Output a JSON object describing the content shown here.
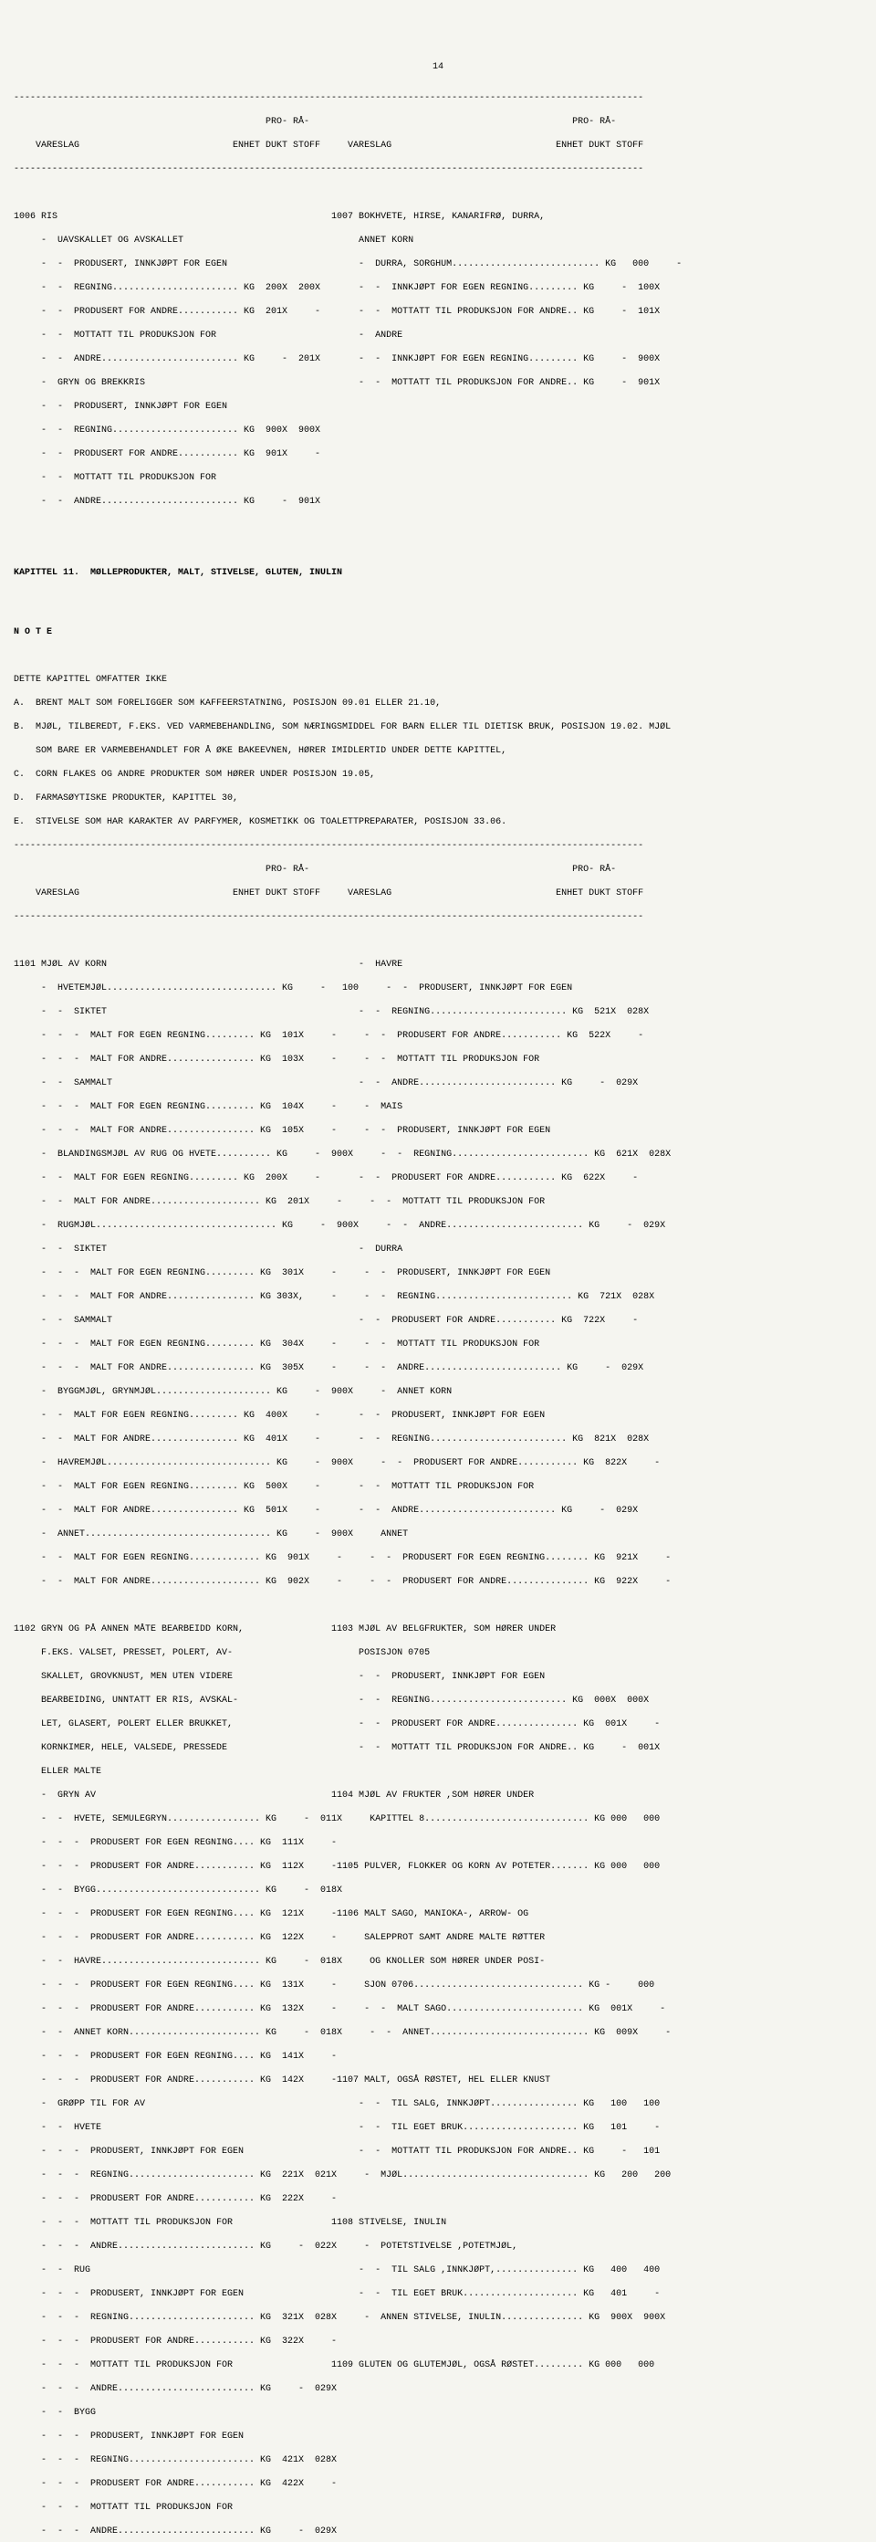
{
  "page_number": "14",
  "header": {
    "col_labels": [
      "VARESLAG",
      "ENHET",
      "PRO-\nDUKT",
      "RÅ-\nSTOFF"
    ]
  },
  "section_1006": {
    "code": "1006",
    "title": "RIS",
    "rows": [
      {
        "i": 1,
        "desc": "UAVSKALLET OG AVSKALLET",
        "e": "",
        "p": "",
        "r": ""
      },
      {
        "i": 2,
        "desc": "PRODUSERT, INNKJØPT FOR EGEN",
        "e": "",
        "p": "",
        "r": ""
      },
      {
        "i": 2,
        "desc": "REGNING.......................",
        "e": "KG",
        "p": "200X",
        "r": "200X"
      },
      {
        "i": 2,
        "desc": "PRODUSERT FOR ANDRE...........",
        "e": "KG",
        "p": "201X",
        "r": "-"
      },
      {
        "i": 2,
        "desc": "MOTTATT TIL PRODUKSJON FOR",
        "e": "",
        "p": "",
        "r": ""
      },
      {
        "i": 2,
        "desc": "ANDRE.........................",
        "e": "KG",
        "p": "-",
        "r": "201X"
      },
      {
        "i": 1,
        "desc": "GRYN OG BREKKRIS",
        "e": "",
        "p": "",
        "r": ""
      },
      {
        "i": 2,
        "desc": "PRODUSERT, INNKJØPT FOR EGEN",
        "e": "",
        "p": "",
        "r": ""
      },
      {
        "i": 2,
        "desc": "REGNING.......................",
        "e": "KG",
        "p": "900X",
        "r": "900X"
      },
      {
        "i": 2,
        "desc": "PRODUSERT FOR ANDRE...........",
        "e": "KG",
        "p": "901X",
        "r": "-"
      },
      {
        "i": 2,
        "desc": "MOTTATT TIL PRODUKSJON FOR",
        "e": "",
        "p": "",
        "r": ""
      },
      {
        "i": 2,
        "desc": "ANDRE.........................",
        "e": "KG",
        "p": "-",
        "r": "901X"
      }
    ]
  },
  "section_1007": {
    "code": "1007",
    "title": "BOKHVETE, HIRSE, KANARIFRØ, DURRA,\nANNET KORN",
    "rows": [
      {
        "i": 1,
        "desc": "DURRA, SORGHUM...........................",
        "e": "KG",
        "p": "000",
        "r": "-"
      },
      {
        "i": 2,
        "desc": "INNKJØPT FOR EGEN REGNING.........",
        "e": "KG",
        "p": "-",
        "r": "100X"
      },
      {
        "i": 2,
        "desc": "MOTTATT TIL PRODUKSJON FOR ANDRE..",
        "e": "KG",
        "p": "-",
        "r": "101X"
      },
      {
        "i": 1,
        "desc": "ANDRE",
        "e": "",
        "p": "",
        "r": ""
      },
      {
        "i": 2,
        "desc": "INNKJØPT FOR EGEN REGNING.........",
        "e": "KG",
        "p": "-",
        "r": "900X"
      },
      {
        "i": 2,
        "desc": "MOTTATT TIL PRODUKSJON FOR ANDRE..",
        "e": "KG",
        "p": "-",
        "r": "901X"
      }
    ]
  },
  "chapter_title": "KAPITTEL 11.  MØLLEPRODUKTER, MALT, STIVELSE, GLUTEN, INULIN",
  "note_title": "N O T E",
  "note_intro": "DETTE KAPITTEL OMFATTER IKKE",
  "notes": [
    "A.  BRENT MALT SOM FORELIGGER SOM KAFFEERSTATNING, POSISJON 09.01 ELLER 21.10,",
    "B.  MJØL, TILBEREDT, F.EKS. VED VARMEBEHANDLING, SOM NÆRINGSMIDDEL FOR BARN ELLER TIL DIETISK BRUK, POSISJON 19.02. MJØL\n    SOM BARE ER VARMEBEHANDLET FOR Å ØKE BAKEEVNEN, HØRER IMIDLERTID UNDER DETTE KAPITTEL,",
    "C.  CORN FLAKES OG ANDRE PRODUKTER SOM HØRER UNDER POSISJON 19.05,",
    "D.  FARMASØYTISKE PRODUKTER, KAPITTEL 30,",
    "E.  STIVELSE SOM HAR KARAKTER AV PARFYMER, KOSMETIKK OG TOALETTPREPARATER, POSISJON 33.06."
  ],
  "section_1101": {
    "code": "1101",
    "title": "MJØL AV KORN",
    "left": [
      {
        "i": 1,
        "desc": "HVETEMJØL...............................",
        "e": "KG",
        "p": "-",
        "r": "100"
      },
      {
        "i": 2,
        "desc": "SIKTET",
        "e": "",
        "p": "",
        "r": ""
      },
      {
        "i": 3,
        "desc": "MALT FOR EGEN REGNING.........",
        "e": "KG",
        "p": "101X",
        "r": "-"
      },
      {
        "i": 3,
        "desc": "MALT FOR ANDRE................",
        "e": "KG",
        "p": "103X",
        "r": "-"
      },
      {
        "i": 2,
        "desc": "SAMMALT",
        "e": "",
        "p": "",
        "r": ""
      },
      {
        "i": 3,
        "desc": "MALT FOR EGEN REGNING.........",
        "e": "KG",
        "p": "104X",
        "r": "-"
      },
      {
        "i": 3,
        "desc": "MALT FOR ANDRE................",
        "e": "KG",
        "p": "105X",
        "r": "-"
      },
      {
        "i": 1,
        "desc": "BLANDINGSMJØL AV RUG OG HVETE..........",
        "e": "KG",
        "p": "-",
        "r": "900X"
      },
      {
        "i": 2,
        "desc": "MALT FOR EGEN REGNING.........",
        "e": "KG",
        "p": "200X",
        "r": "-"
      },
      {
        "i": 2,
        "desc": "MALT FOR ANDRE....................",
        "e": "KG",
        "p": "201X",
        "r": "-"
      },
      {
        "i": 1,
        "desc": "RUGMJØL.................................",
        "e": "KG",
        "p": "-",
        "r": "900X"
      },
      {
        "i": 2,
        "desc": "SIKTET",
        "e": "",
        "p": "",
        "r": ""
      },
      {
        "i": 3,
        "desc": "MALT FOR EGEN REGNING.........",
        "e": "KG",
        "p": "301X",
        "r": "-"
      },
      {
        "i": 3,
        "desc": "MALT FOR ANDRE................",
        "e": "KG",
        "p": "303X,",
        "r": "-"
      },
      {
        "i": 2,
        "desc": "SAMMALT",
        "e": "",
        "p": "",
        "r": ""
      },
      {
        "i": 3,
        "desc": "MALT FOR EGEN REGNING.........",
        "e": "KG",
        "p": "304X",
        "r": "-"
      },
      {
        "i": 3,
        "desc": "MALT FOR ANDRE................",
        "e": "KG",
        "p": "305X",
        "r": "-"
      },
      {
        "i": 1,
        "desc": "BYGGMJØL, GRYNMJØL.....................",
        "e": "KG",
        "p": "-",
        "r": "900X"
      },
      {
        "i": 2,
        "desc": "MALT FOR EGEN REGNING.........",
        "e": "KG",
        "p": "400X",
        "r": "-"
      },
      {
        "i": 2,
        "desc": "MALT FOR ANDRE................",
        "e": "KG",
        "p": "401X",
        "r": "-"
      },
      {
        "i": 1,
        "desc": "HAVREMJØL..............................",
        "e": "KG",
        "p": "-",
        "r": "900X"
      },
      {
        "i": 2,
        "desc": "MALT FOR EGEN REGNING.........",
        "e": "KG",
        "p": "500X",
        "r": "-"
      },
      {
        "i": 2,
        "desc": "MALT FOR ANDRE................",
        "e": "KG",
        "p": "501X",
        "r": "-"
      },
      {
        "i": 1,
        "desc": "ANNET..................................",
        "e": "KG",
        "p": "-",
        "r": "900X"
      },
      {
        "i": 2,
        "desc": "MALT FOR EGEN REGNING.............",
        "e": "KG",
        "p": "901X",
        "r": "-"
      },
      {
        "i": 2,
        "desc": "MALT FOR ANDRE....................",
        "e": "KG",
        "p": "902X",
        "r": "-"
      }
    ],
    "right": [
      {
        "i": 1,
        "desc": "HAVRE",
        "e": "",
        "p": "",
        "r": ""
      },
      {
        "i": 2,
        "desc": "PRODUSERT, INNKJØPT FOR EGEN",
        "e": "",
        "p": "",
        "r": ""
      },
      {
        "i": 2,
        "desc": "REGNING.........................",
        "e": "KG",
        "p": "521X",
        "r": "028X"
      },
      {
        "i": 2,
        "desc": "PRODUSERT FOR ANDRE...........",
        "e": "KG",
        "p": "522X",
        "r": "-"
      },
      {
        "i": 2,
        "desc": "MOTTATT TIL PRODUKSJON FOR",
        "e": "",
        "p": "",
        "r": ""
      },
      {
        "i": 2,
        "desc": "ANDRE.........................",
        "e": "KG",
        "p": "-",
        "r": "029X"
      },
      {
        "i": 1,
        "desc": "MAIS",
        "e": "",
        "p": "",
        "r": ""
      },
      {
        "i": 2,
        "desc": "PRODUSERT, INNKJØPT FOR EGEN",
        "e": "",
        "p": "",
        "r": ""
      },
      {
        "i": 2,
        "desc": "REGNING.........................",
        "e": "KG",
        "p": "621X",
        "r": "028X"
      },
      {
        "i": 2,
        "desc": "PRODUSERT FOR ANDRE...........",
        "e": "KG",
        "p": "622X",
        "r": "-"
      },
      {
        "i": 2,
        "desc": "MOTTATT TIL PRODUKSJON FOR",
        "e": "",
        "p": "",
        "r": ""
      },
      {
        "i": 2,
        "desc": "ANDRE.........................",
        "e": "KG",
        "p": "-",
        "r": "029X"
      },
      {
        "i": 1,
        "desc": "DURRA",
        "e": "",
        "p": "",
        "r": ""
      },
      {
        "i": 2,
        "desc": "PRODUSERT, INNKJØPT FOR EGEN",
        "e": "",
        "p": "",
        "r": ""
      },
      {
        "i": 2,
        "desc": "REGNING.........................",
        "e": "KG",
        "p": "721X",
        "r": "028X"
      },
      {
        "i": 2,
        "desc": "PRODUSERT FOR ANDRE...........",
        "e": "KG",
        "p": "722X",
        "r": "-"
      },
      {
        "i": 2,
        "desc": "MOTTATT TIL PRODUKSJON FOR",
        "e": "",
        "p": "",
        "r": ""
      },
      {
        "i": 2,
        "desc": "ANDRE.........................",
        "e": "KG",
        "p": "-",
        "r": "029X"
      },
      {
        "i": 1,
        "desc": "ANNET KORN",
        "e": "",
        "p": "",
        "r": ""
      },
      {
        "i": 2,
        "desc": "PRODUSERT, INNKJØPT FOR EGEN",
        "e": "",
        "p": "",
        "r": ""
      },
      {
        "i": 2,
        "desc": "REGNING.........................",
        "e": "KG",
        "p": "821X",
        "r": "028X"
      },
      {
        "i": 2,
        "desc": "PRODUSERT FOR ANDRE...........",
        "e": "KG",
        "p": "822X",
        "r": "-"
      },
      {
        "i": 2,
        "desc": "MOTTATT TIL PRODUKSJON FOR",
        "e": "",
        "p": "",
        "r": ""
      },
      {
        "i": 2,
        "desc": "ANDRE.........................",
        "e": "KG",
        "p": "-",
        "r": "029X"
      },
      {
        "i": 0,
        "desc": "ANNET",
        "e": "",
        "p": "",
        "r": ""
      },
      {
        "i": 2,
        "desc": "PRODUSERT FOR EGEN REGNING........",
        "e": "KG",
        "p": "921X",
        "r": "-"
      },
      {
        "i": 2,
        "desc": "PRODUSERT FOR ANDRE...............",
        "e": "KG",
        "p": "922X",
        "r": "-"
      }
    ]
  },
  "section_1102": {
    "code": "1102",
    "title": "GRYN OG PÅ ANNEN MÅTE BEARBEIDD KORN,\nF.EKS. VALSET, PRESSET, POLERT, AV-\nSKALLET, GROVKNUST, MEN UTEN VIDERE\nBEARBEIDING, UNNTATT ER RIS, AVSKAL-\nLET, GLASERT, POLERT ELLER BRUKKET,\nKORNKIMER, HELE, VALSEDE, PRESSEDE\nELLER MALTE",
    "rows": [
      {
        "i": 1,
        "desc": "GRYN AV",
        "e": "",
        "p": "",
        "r": ""
      },
      {
        "i": 2,
        "desc": "HVETE, SEMULEGRYN.................",
        "e": "KG",
        "p": "-",
        "r": "011X"
      },
      {
        "i": 3,
        "desc": "PRODUSERT FOR EGEN REGNING....",
        "e": "KG",
        "p": "111X",
        "r": "-"
      },
      {
        "i": 3,
        "desc": "PRODUSERT FOR ANDRE...........",
        "e": "KG",
        "p": "112X",
        "r": "-"
      },
      {
        "i": 2,
        "desc": "BYGG..............................",
        "e": "KG",
        "p": "-",
        "r": "018X"
      },
      {
        "i": 3,
        "desc": "PRODUSERT FOR EGEN REGNING....",
        "e": "KG",
        "p": "121X",
        "r": "-"
      },
      {
        "i": 3,
        "desc": "PRODUSERT FOR ANDRE...........",
        "e": "KG",
        "p": "122X",
        "r": "-"
      },
      {
        "i": 2,
        "desc": "HAVRE.............................",
        "e": "KG",
        "p": "-",
        "r": "018X"
      },
      {
        "i": 3,
        "desc": "PRODUSERT FOR EGEN REGNING....",
        "e": "KG",
        "p": "131X",
        "r": "-"
      },
      {
        "i": 3,
        "desc": "PRODUSERT FOR ANDRE...........",
        "e": "KG",
        "p": "132X",
        "r": "-"
      },
      {
        "i": 2,
        "desc": "ANNET KORN........................",
        "e": "KG",
        "p": "-",
        "r": "018X"
      },
      {
        "i": 3,
        "desc": "PRODUSERT FOR EGEN REGNING....",
        "e": "KG",
        "p": "141X",
        "r": "-"
      },
      {
        "i": 3,
        "desc": "PRODUSERT FOR ANDRE...........",
        "e": "KG",
        "p": "142X",
        "r": "-"
      },
      {
        "i": 1,
        "desc": "GRØPP TIL FOR AV",
        "e": "",
        "p": "",
        "r": ""
      },
      {
        "i": 2,
        "desc": "HVETE",
        "e": "",
        "p": "",
        "r": ""
      },
      {
        "i": 3,
        "desc": "PRODUSERT, INNKJØPT FOR EGEN",
        "e": "",
        "p": "",
        "r": ""
      },
      {
        "i": 3,
        "desc": "REGNING.......................",
        "e": "KG",
        "p": "221X",
        "r": "021X"
      },
      {
        "i": 3,
        "desc": "PRODUSERT FOR ANDRE...........",
        "e": "KG",
        "p": "222X",
        "r": "-"
      },
      {
        "i": 3,
        "desc": "MOTTATT TIL PRODUKSJON FOR",
        "e": "",
        "p": "",
        "r": ""
      },
      {
        "i": 3,
        "desc": "ANDRE.........................",
        "e": "KG",
        "p": "-",
        "r": "022X"
      },
      {
        "i": 2,
        "desc": "RUG",
        "e": "",
        "p": "",
        "r": ""
      },
      {
        "i": 3,
        "desc": "PRODUSERT, INNKJØPT FOR EGEN",
        "e": "",
        "p": "",
        "r": ""
      },
      {
        "i": 3,
        "desc": "REGNING.......................",
        "e": "KG",
        "p": "321X",
        "r": "028X"
      },
      {
        "i": 3,
        "desc": "PRODUSERT FOR ANDRE...........",
        "e": "KG",
        "p": "322X",
        "r": "-"
      },
      {
        "i": 3,
        "desc": "MOTTATT TIL PRODUKSJON FOR",
        "e": "",
        "p": "",
        "r": ""
      },
      {
        "i": 3,
        "desc": "ANDRE.........................",
        "e": "KG",
        "p": "-",
        "r": "029X"
      },
      {
        "i": 2,
        "desc": "BYGG",
        "e": "",
        "p": "",
        "r": ""
      },
      {
        "i": 3,
        "desc": "PRODUSERT, INNKJØPT FOR EGEN",
        "e": "",
        "p": "",
        "r": ""
      },
      {
        "i": 3,
        "desc": "REGNING.......................",
        "e": "KG",
        "p": "421X",
        "r": "028X"
      },
      {
        "i": 3,
        "desc": "PRODUSERT FOR ANDRE...........",
        "e": "KG",
        "p": "422X",
        "r": "-"
      },
      {
        "i": 3,
        "desc": "MOTTATT TIL PRODUKSJON FOR",
        "e": "",
        "p": "",
        "r": ""
      },
      {
        "i": 3,
        "desc": "ANDRE.........................",
        "e": "KG",
        "p": "-",
        "r": "029X"
      }
    ]
  },
  "right_sections": [
    {
      "code": "1103",
      "title": "MJØL AV BELGFRUKTER, SOM HØRER UNDER\nPOSISJON 0705",
      "rows": [
        {
          "i": 2,
          "desc": "PRODUSERT, INNKJØPT FOR EGEN",
          "e": "",
          "p": "",
          "r": ""
        },
        {
          "i": 2,
          "desc": "REGNING.........................",
          "e": "KG",
          "p": "000X",
          "r": "000X"
        },
        {
          "i": 2,
          "desc": "PRODUSERT FOR ANDRE...............",
          "e": "KG",
          "p": "001X",
          "r": "-"
        },
        {
          "i": 2,
          "desc": "MOTTATT TIL PRODUKSJON FOR ANDRE..",
          "e": "KG",
          "p": "-",
          "r": "001X"
        }
      ]
    },
    {
      "code": "1104",
      "title": "MJØL AV FRUKTER ,SOM HØRER UNDER\nKAPITTEL 8.............................. KG 000   000",
      "rows": []
    },
    {
      "code": "1105",
      "title": "PULVER, FLOKKER OG KORN AV POTETER....... KG 000   000",
      "rows": []
    },
    {
      "code": "1106",
      "title": "MALT SAGO, MANIOKA-, ARROW- OG\nSALEPPROT SAMT ANDRE MALTE RØTTER\nOG KNOLLER SOM HØRER UNDER POSI-\nSJON 0706............................... KG -     000",
      "rows": [
        {
          "i": 2,
          "desc": "MALT SAGO.........................",
          "e": "KG",
          "p": "001X",
          "r": "-"
        },
        {
          "i": 2,
          "desc": "ANNET.............................",
          "e": "KG",
          "p": "009X",
          "r": "-"
        }
      ]
    },
    {
      "code": "1107",
      "title": "MALT, OGSÅ RØSTET, HEL ELLER KNUST",
      "rows": [
        {
          "i": 2,
          "desc": "TIL SALG, INNKJØPT................",
          "e": "KG",
          "p": "100",
          "r": "100"
        },
        {
          "i": 2,
          "desc": "TIL EGET BRUK.....................",
          "e": "KG",
          "p": "101",
          "r": "-"
        },
        {
          "i": 2,
          "desc": "MOTTATT TIL PRODUKSJON FOR ANDRE..",
          "e": "KG",
          "p": "-",
          "r": "101"
        },
        {
          "i": 1,
          "desc": "MJØL..................................",
          "e": "KG",
          "p": "200",
          "r": "200"
        }
      ]
    },
    {
      "code": "1108",
      "title": "STIVELSE, INULIN",
      "rows": [
        {
          "i": 1,
          "desc": "POTETSTIVELSE ,POTETMJØL,",
          "e": "",
          "p": "",
          "r": ""
        },
        {
          "i": 2,
          "desc": "TIL SALG ,INNKJØPT,...............",
          "e": "KG",
          "p": "400",
          "r": "400"
        },
        {
          "i": 2,
          "desc": "TIL EGET BRUK.....................",
          "e": "KG",
          "p": "401",
          "r": "-"
        },
        {
          "i": 1,
          "desc": "ANNEN STIVELSE, INULIN...............",
          "e": "KG",
          "p": "900X",
          "r": "900X"
        }
      ]
    },
    {
      "code": "1109",
      "title": "GLUTEN OG GLUTEMJØL, OGSÅ RØSTET......... KG 000   000",
      "rows": []
    }
  ]
}
